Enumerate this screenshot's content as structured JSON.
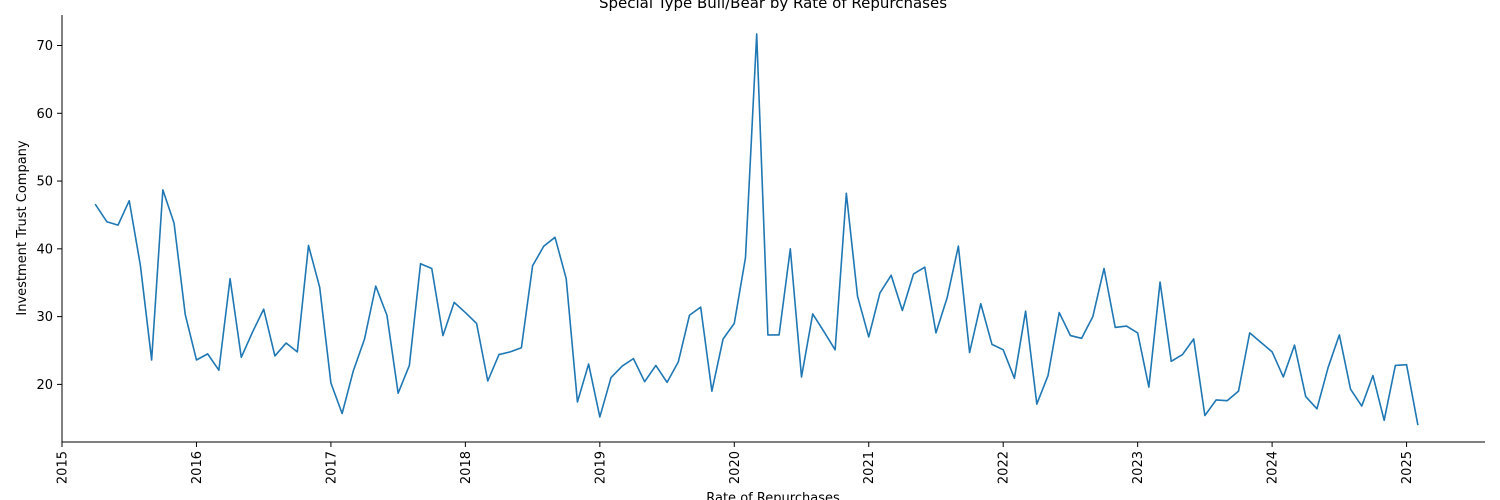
{
  "chart_data": {
    "type": "line",
    "title": "Special Type Bull/Bear by Rate of Repurchases",
    "xlabel": "Rate of Repurchases",
    "ylabel": "Investment Trust Company",
    "xlim": [
      "2015-01-01",
      "2025-08-01"
    ],
    "ylim": [
      11.5,
      74.5
    ],
    "x_ticks": [
      "2015",
      "2016",
      "2017",
      "2018",
      "2019",
      "2020",
      "2021",
      "2022",
      "2023",
      "2024",
      "2025"
    ],
    "y_ticks": [
      20,
      30,
      40,
      50,
      60,
      70
    ],
    "grid": false,
    "series": [
      {
        "color": "#1f77b4",
        "points": [
          [
            "2015-04",
            46.5
          ],
          [
            "2015-05",
            44.0
          ],
          [
            "2015-06",
            43.5
          ],
          [
            "2015-07",
            47.1
          ],
          [
            "2015-08",
            37.5
          ],
          [
            "2015-09",
            23.6
          ],
          [
            "2015-10",
            48.7
          ],
          [
            "2015-11",
            43.8
          ],
          [
            "2015-12",
            30.3
          ],
          [
            "2016-01",
            23.6
          ],
          [
            "2016-02",
            24.5
          ],
          [
            "2016-03",
            22.1
          ],
          [
            "2016-04",
            35.6
          ],
          [
            "2016-05",
            24.0
          ],
          [
            "2016-06",
            27.7
          ],
          [
            "2016-07",
            31.1
          ],
          [
            "2016-08",
            24.2
          ],
          [
            "2016-09",
            26.1
          ],
          [
            "2016-10",
            24.8
          ],
          [
            "2016-11",
            40.5
          ],
          [
            "2016-12",
            34.3
          ],
          [
            "2017-01",
            20.2
          ],
          [
            "2017-02",
            15.7
          ],
          [
            "2017-03",
            22.0
          ],
          [
            "2017-04",
            26.7
          ],
          [
            "2017-05",
            34.5
          ],
          [
            "2017-06",
            30.2
          ],
          [
            "2017-07",
            18.7
          ],
          [
            "2017-08",
            22.8
          ],
          [
            "2017-09",
            37.8
          ],
          [
            "2017-10",
            37.1
          ],
          [
            "2017-11",
            27.2
          ],
          [
            "2017-12",
            32.1
          ],
          [
            "2018-01",
            30.6
          ],
          [
            "2018-02",
            29.0
          ],
          [
            "2018-03",
            20.5
          ],
          [
            "2018-04",
            24.4
          ],
          [
            "2018-05",
            24.8
          ],
          [
            "2018-06",
            25.4
          ],
          [
            "2018-07",
            37.5
          ],
          [
            "2018-08",
            40.4
          ],
          [
            "2018-09",
            41.7
          ],
          [
            "2018-10",
            35.6
          ],
          [
            "2018-11",
            17.4
          ],
          [
            "2018-12",
            23.0
          ],
          [
            "2019-01",
            15.2
          ],
          [
            "2019-02",
            21.0
          ],
          [
            "2019-03",
            22.7
          ],
          [
            "2019-04",
            23.8
          ],
          [
            "2019-05",
            20.4
          ],
          [
            "2019-06",
            22.8
          ],
          [
            "2019-07",
            20.3
          ],
          [
            "2019-08",
            23.3
          ],
          [
            "2019-09",
            30.2
          ],
          [
            "2019-10",
            31.4
          ],
          [
            "2019-11",
            19.0
          ],
          [
            "2019-12",
            26.7
          ],
          [
            "2020-01",
            29.0
          ],
          [
            "2020-02",
            38.7
          ],
          [
            "2020-03",
            71.7
          ],
          [
            "2020-04",
            27.3
          ],
          [
            "2020-05",
            27.3
          ],
          [
            "2020-06",
            40.0
          ],
          [
            "2020-07",
            21.1
          ],
          [
            "2020-08",
            30.4
          ],
          [
            "2020-09",
            27.8
          ],
          [
            "2020-10",
            25.1
          ],
          [
            "2020-11",
            48.2
          ],
          [
            "2020-12",
            33.0
          ],
          [
            "2021-01",
            27.0
          ],
          [
            "2021-02",
            33.5
          ],
          [
            "2021-03",
            36.1
          ],
          [
            "2021-04",
            30.9
          ],
          [
            "2021-05",
            36.3
          ],
          [
            "2021-06",
            37.3
          ],
          [
            "2021-07",
            27.6
          ],
          [
            "2021-08",
            32.8
          ],
          [
            "2021-09",
            40.4
          ],
          [
            "2021-10",
            24.7
          ],
          [
            "2021-11",
            31.9
          ],
          [
            "2021-12",
            25.9
          ],
          [
            "2022-01",
            25.1
          ],
          [
            "2022-02",
            20.9
          ],
          [
            "2022-03",
            30.8
          ],
          [
            "2022-04",
            17.1
          ],
          [
            "2022-05",
            21.3
          ],
          [
            "2022-06",
            30.6
          ],
          [
            "2022-07",
            27.2
          ],
          [
            "2022-08",
            26.8
          ],
          [
            "2022-09",
            30.0
          ],
          [
            "2022-10",
            37.1
          ],
          [
            "2022-11",
            28.4
          ],
          [
            "2022-12",
            28.6
          ],
          [
            "2023-01",
            27.6
          ],
          [
            "2023-02",
            19.6
          ],
          [
            "2023-03",
            35.1
          ],
          [
            "2023-04",
            23.4
          ],
          [
            "2023-05",
            24.4
          ],
          [
            "2023-06",
            26.7
          ],
          [
            "2023-07",
            15.4
          ],
          [
            "2023-08",
            17.7
          ],
          [
            "2023-09",
            17.6
          ],
          [
            "2023-10",
            19.0
          ],
          [
            "2023-11",
            27.6
          ],
          [
            "2023-12",
            26.2
          ],
          [
            "2024-01",
            24.8
          ],
          [
            "2024-02",
            21.1
          ],
          [
            "2024-03",
            25.8
          ],
          [
            "2024-04",
            18.2
          ],
          [
            "2024-05",
            16.4
          ],
          [
            "2024-06",
            22.5
          ],
          [
            "2024-07",
            27.3
          ],
          [
            "2024-08",
            19.3
          ],
          [
            "2024-09",
            16.8
          ],
          [
            "2024-10",
            21.3
          ],
          [
            "2024-11",
            14.7
          ],
          [
            "2024-12",
            22.8
          ],
          [
            "2025-01",
            22.9
          ],
          [
            "2025-02",
            14.1
          ]
        ]
      }
    ]
  }
}
